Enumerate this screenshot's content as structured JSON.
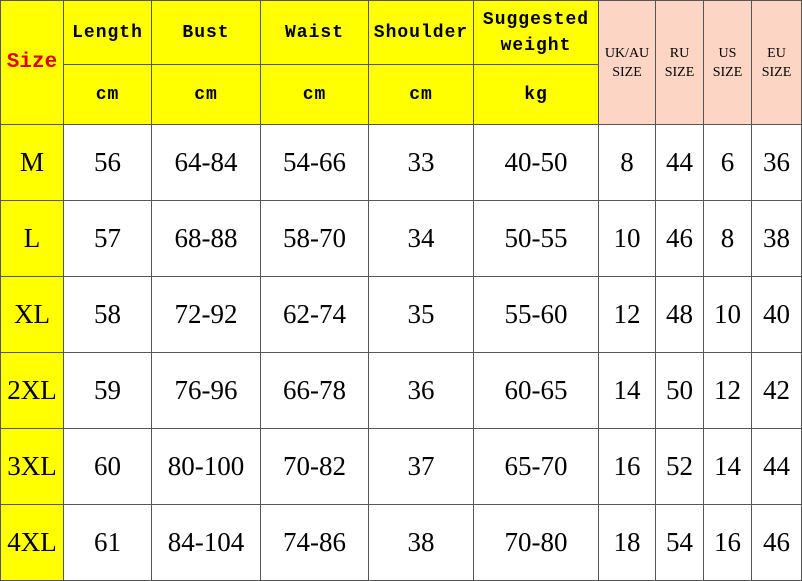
{
  "table": {
    "header": {
      "size": "Size",
      "columns": [
        "Length",
        "Bust",
        "Waist",
        "Shoulder",
        "Suggested weight"
      ],
      "units": [
        "cm",
        "cm",
        "cm",
        "cm",
        "kg"
      ],
      "regions": [
        "UK/AU SIZE",
        "RU SIZE",
        "US SIZE",
        "EU SIZE"
      ]
    },
    "rows": [
      [
        "M",
        "56",
        "64-84",
        "54-66",
        "33",
        "40-50",
        "8",
        "44",
        "6",
        "36"
      ],
      [
        "L",
        "57",
        "68-88",
        "58-70",
        "34",
        "50-55",
        "10",
        "46",
        "8",
        "38"
      ],
      [
        "XL",
        "58",
        "72-92",
        "62-74",
        "35",
        "55-60",
        "12",
        "48",
        "10",
        "40"
      ],
      [
        "2XL",
        "59",
        "76-96",
        "66-78",
        "36",
        "60-65",
        "14",
        "50",
        "12",
        "42"
      ],
      [
        "3XL",
        "60",
        "80-100",
        "70-82",
        "37",
        "65-70",
        "16",
        "52",
        "14",
        "44"
      ],
      [
        "4XL",
        "61",
        "84-104",
        "74-86",
        "38",
        "70-80",
        "18",
        "54",
        "16",
        "46"
      ]
    ]
  }
}
